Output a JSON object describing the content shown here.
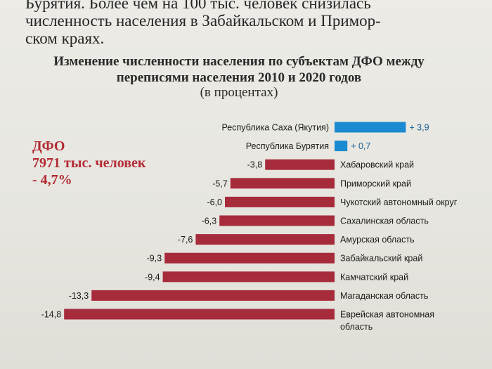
{
  "body_text": {
    "line1": "Бурятия. Более чем на 100 тыс. человек снизилась",
    "line2": "численность населения в Забайкальском и Примор-",
    "line3": "ском краях."
  },
  "summary": {
    "name": "ДФО",
    "population": "7971 тыс. человек",
    "change": "- 4,7%"
  },
  "colors": {
    "negative_bar": "#a62b3b",
    "positive_bar": "#1b8ad0",
    "summary_text": "#b22a33"
  },
  "chart_data": {
    "type": "bar",
    "orientation": "horizontal",
    "title": "Изменение численности населения по субъектам ДФО между переписями населения 2010 и 2020 годов",
    "subtitle": "(в процентах)",
    "categories": [
      "Республика Саха (Якутия)",
      "Республика Бурятия",
      "Хабаровский край",
      "Приморский край",
      "Чукотский автономный округ",
      "Сахалинская область",
      "Амурская область",
      "Забайкальский край",
      "Камчатский край",
      "Магаданская область",
      "Еврейская автономная область"
    ],
    "values": [
      3.9,
      0.7,
      -3.8,
      -5.7,
      -6.0,
      -6.3,
      -7.6,
      -9.3,
      -9.4,
      -13.3,
      -14.8
    ],
    "value_labels": [
      "+ 3,9",
      "+ 0,7",
      "-3,8",
      "-5,7",
      "-6,0",
      "-6,3",
      "-7,6",
      "-9,3",
      "-9,4",
      "-13,3",
      "-14,8"
    ],
    "xlim": [
      -14.8,
      3.9
    ],
    "grid": false,
    "legend": "none"
  }
}
